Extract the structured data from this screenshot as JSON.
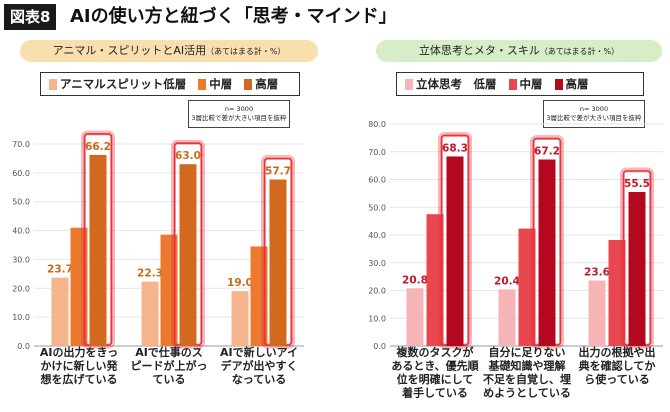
{
  "figure_tag": "図表8",
  "figure_title": "AIの使い方と紐づく「思考・マインド」",
  "chart_data": [
    {
      "type": "bar",
      "title": "アニマル・スピリットとAI活用",
      "title_note": "（あてはまる計・%）",
      "categories": [
        [
          "AIの出力をきっ",
          "かけに新しい発",
          "想を広げている"
        ],
        [
          "AIで仕事のス",
          "ピードが上がっ",
          "ている"
        ],
        [
          "AIで新しいアイ",
          "デアが出やすく",
          "なっている"
        ]
      ],
      "series": [
        {
          "name": "アニマルスピリット低層",
          "values": [
            23.7,
            22.3,
            19.0
          ],
          "color": "#f5b48c"
        },
        {
          "name": "中層",
          "values": [
            41.0,
            38.6,
            34.5
          ],
          "color": "#ec7a2e"
        },
        {
          "name": "高層",
          "values": [
            66.2,
            63.0,
            57.7
          ],
          "color": "#d2691e"
        }
      ],
      "value_labels": [
        [
          "23.7",
          "",
          "66.2"
        ],
        [
          "22.3",
          "",
          "63.0"
        ],
        [
          "19.0",
          "",
          "57.7"
        ]
      ],
      "ylim": [
        0,
        70
      ],
      "yticks": [
        "0.0",
        "10.0",
        "20.0",
        "30.0",
        "40.0",
        "50.0",
        "60.0",
        "70.0"
      ],
      "highlight_color": "#e8323c",
      "value_color": "#c96a1e",
      "theme_color": "#f9dfae",
      "note": [
        "n= 3000",
        "3層比較で差が大きい項目を抜粋"
      ]
    },
    {
      "type": "bar",
      "title": "立体思考とメタ・スキル",
      "title_note": "（あてはまる計・%）",
      "categories": [
        [
          "複数のタスクが",
          "あるとき、優先順",
          "位を明確にして",
          "着手している"
        ],
        [
          "自分に足りない",
          "基礎知識や理解",
          "不足を自覚し、埋",
          "めようとしている"
        ],
        [
          "出力の根拠や出",
          "典を確認してか",
          "ら使っている"
        ]
      ],
      "series": [
        {
          "name": "立体思考　低層",
          "values": [
            20.8,
            20.4,
            23.6
          ],
          "color": "#f7b4b7"
        },
        {
          "name": "中層",
          "values": [
            47.5,
            42.3,
            38.2
          ],
          "color": "#e8474f"
        },
        {
          "name": "高層",
          "values": [
            68.3,
            67.2,
            55.5
          ],
          "color": "#b3081e"
        }
      ],
      "value_labels": [
        [
          "20.8",
          "",
          "68.3"
        ],
        [
          "20.4",
          "",
          "67.2"
        ],
        [
          "23.6",
          "",
          "55.5"
        ]
      ],
      "ylim": [
        0,
        80
      ],
      "yticks": [
        "0.0",
        "10.0",
        "20.0",
        "30.0",
        "40.0",
        "50.0",
        "60.0",
        "70.0",
        "80.0"
      ],
      "highlight_color": "#e8323c",
      "value_color": "#c3172b",
      "theme_color": "#d5eec7",
      "note": [
        "n= 3000",
        "3層比較で差が大きい項目を抜粋"
      ]
    }
  ]
}
